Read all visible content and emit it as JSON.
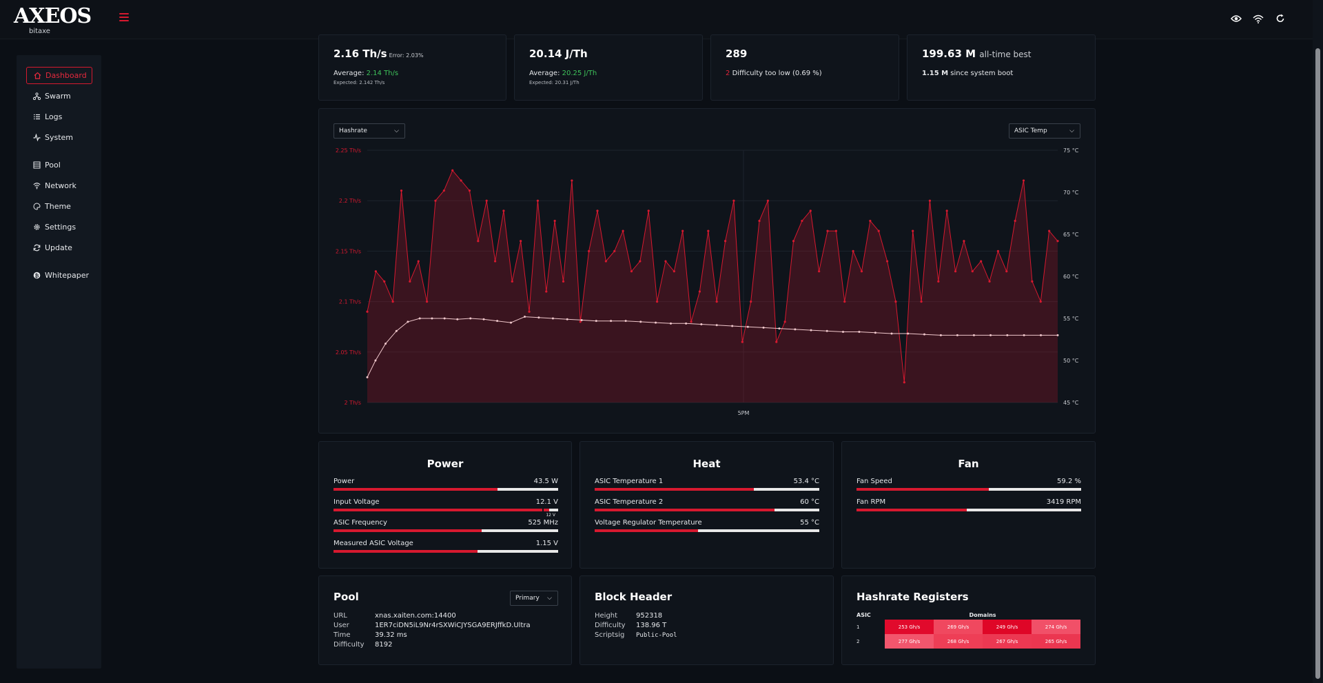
{
  "brand": {
    "name": "AXEOS",
    "sub": "bitaxe"
  },
  "icons": {
    "hamburger": "menu-icon",
    "eye": "eye-icon",
    "wifi": "wifi-icon",
    "refresh": "refresh-icon"
  },
  "colors": {
    "accent": "#d7192f",
    "green": "#3ec35a",
    "background": "#0b0f15",
    "card": "#0f141b"
  },
  "sidebar": {
    "items": [
      {
        "label": "Dashboard",
        "icon": "home-icon",
        "active": true
      },
      {
        "label": "Swarm",
        "icon": "sitemap-icon"
      },
      {
        "label": "Logs",
        "icon": "list-icon"
      },
      {
        "label": "System",
        "icon": "pulse-icon"
      },
      {
        "label": "Pool",
        "icon": "server-icon"
      },
      {
        "label": "Network",
        "icon": "wifi-icon"
      },
      {
        "label": "Theme",
        "icon": "palette-icon"
      },
      {
        "label": "Settings",
        "icon": "gear-icon"
      },
      {
        "label": "Update",
        "icon": "sync-icon"
      },
      {
        "label": "Whitepaper",
        "icon": "bitcoin-icon"
      }
    ]
  },
  "stats": {
    "hashrate": {
      "value": "2.16 Th/s",
      "error": "Error: 2.03%",
      "avg_label": "Average:",
      "avg_value": "2.14 Th/s",
      "expected": "Expected: 2.142 Th/s"
    },
    "efficiency": {
      "value": "20.14 J/Th",
      "avg_label": "Average:",
      "avg_value": "20.25 J/Th",
      "expected": "Expected: 20.31 J/Th"
    },
    "shares": {
      "value": "289",
      "rejected_count": "2",
      "rejected_text": "Difficulty too low",
      "rejected_pct": "(0.69 %)"
    },
    "best": {
      "value": "199.63 M",
      "label": "all-time best",
      "since_value": "1.15 M",
      "since_label": "since system boot"
    }
  },
  "chart_controls": {
    "left_select": "Hashrate",
    "right_select": "ASIC Temp"
  },
  "chart_data": {
    "type": "line",
    "x_ticks": [
      "5PM"
    ],
    "y_left_ticks": [
      "2.25 Th/s",
      "2.2 Th/s",
      "2.15 Th/s",
      "2.1 Th/s",
      "2.05 Th/s",
      "2 Th/s"
    ],
    "y_right_ticks": [
      "75 °C",
      "70 °C",
      "65 °C",
      "60 °C",
      "55 °C",
      "50 °C",
      "45 °C"
    ],
    "ylim_left": [
      2.0,
      2.25
    ],
    "ylim_right": [
      45,
      75
    ],
    "grid": true,
    "series": [
      {
        "axis": "left",
        "color": "#d7192f",
        "values": [
          2.09,
          2.13,
          2.12,
          2.1,
          2.21,
          2.12,
          2.14,
          2.1,
          2.2,
          2.21,
          2.23,
          2.22,
          2.21,
          2.16,
          2.2,
          2.14,
          2.19,
          2.12,
          2.16,
          2.09,
          2.2,
          2.11,
          2.18,
          2.12,
          2.22,
          2.08,
          2.15,
          2.19,
          2.14,
          2.15,
          2.17,
          2.13,
          2.14,
          2.19,
          2.1,
          2.14,
          2.13,
          2.17,
          2.08,
          2.11,
          2.17,
          2.1,
          2.16,
          2.2,
          2.06,
          2.1,
          2.18,
          2.2,
          2.06,
          2.08,
          2.16,
          2.18,
          2.19,
          2.13,
          2.17,
          2.17,
          2.1,
          2.15,
          2.13,
          2.18,
          2.17,
          2.14,
          2.1,
          2.02,
          2.17,
          2.1,
          2.2,
          2.12,
          2.19,
          2.13,
          2.16,
          2.13,
          2.14,
          2.12,
          2.15,
          2.13,
          2.18,
          2.22,
          2.12,
          2.1,
          2.17,
          2.16
        ]
      },
      {
        "axis": "right",
        "color": "#f0c8cc",
        "values": [
          48,
          50,
          52,
          53.5,
          54.6,
          55,
          55,
          55,
          54.9,
          55,
          54.9,
          54.7,
          54.5,
          55.2,
          55.1,
          55,
          54.9,
          54.8,
          54.7,
          54.7,
          54.7,
          54.6,
          54.5,
          54.4,
          54.4,
          54.3,
          54.2,
          54.1,
          54.0,
          53.9,
          53.8,
          53.7,
          53.6,
          53.5,
          53.4,
          53.4,
          53.3,
          53.2,
          53.2,
          53.1,
          53.0,
          53.0,
          53.0,
          53.0,
          53.0,
          53.0,
          53.0,
          53.0
        ]
      }
    ]
  },
  "power": {
    "title": "Power",
    "rows": [
      {
        "label": "Power",
        "value": "43.5 W",
        "fill": 0.73
      },
      {
        "label": "Input Voltage",
        "value": "12.1 V",
        "fill": 0.96,
        "marker": "12 V"
      },
      {
        "label": "ASIC Frequency",
        "value": "525 MHz",
        "fill": 0.66
      },
      {
        "label": "Measured ASIC Voltage",
        "value": "1.15 V",
        "fill": 0.64
      }
    ]
  },
  "heat": {
    "title": "Heat",
    "rows": [
      {
        "label": "ASIC Temperature 1",
        "value": "53.4 °C",
        "fill": 0.71
      },
      {
        "label": "ASIC Temperature 2",
        "value": "60 °C",
        "fill": 0.8
      },
      {
        "label": "Voltage Regulator Temperature",
        "value": "55 °C",
        "fill": 0.46
      }
    ]
  },
  "fan": {
    "title": "Fan",
    "rows": [
      {
        "label": "Fan Speed",
        "value": "59.2 %",
        "fill": 0.59
      },
      {
        "label": "Fan RPM",
        "value": "3419 RPM",
        "fill": 0.49
      }
    ]
  },
  "pool": {
    "title": "Pool",
    "select": "Primary",
    "rows": [
      {
        "k": "URL",
        "v": "xnas.xaiten.com:14400"
      },
      {
        "k": "User",
        "v": "1ER7ciDN5iL9Nr4rSXWiCJYSGA9ERJffkD.Ultra"
      },
      {
        "k": "Time",
        "v": "39.32 ms"
      },
      {
        "k": "Difficulty",
        "v": "8192"
      }
    ]
  },
  "block_header": {
    "title": "Block Header",
    "rows": [
      {
        "k": "Height",
        "v": "952318"
      },
      {
        "k": "Difficulty",
        "v": "138.96 T"
      },
      {
        "k": "Scriptsig",
        "v": "Public-Pool"
      }
    ]
  },
  "registers": {
    "title": "Hashrate Registers",
    "col_asic": "ASIC",
    "col_domains": "Domains",
    "rows": [
      {
        "asic": "1",
        "cells": [
          {
            "v": "253 Gh/s",
            "c": "#e10a2c"
          },
          {
            "v": "269 Gh/s",
            "c": "#f0485f"
          },
          {
            "v": "249 Gh/s",
            "c": "#df0627"
          },
          {
            "v": "274 Gh/s",
            "c": "#f15068"
          }
        ]
      },
      {
        "asic": "2",
        "cells": [
          {
            "v": "277 Gh/s",
            "c": "#f2566d"
          },
          {
            "v": "268 Gh/s",
            "c": "#ee3e56"
          },
          {
            "v": "267 Gh/s",
            "c": "#ec3852"
          },
          {
            "v": "265 Gh/s",
            "c": "#eb3650"
          }
        ]
      }
    ]
  }
}
